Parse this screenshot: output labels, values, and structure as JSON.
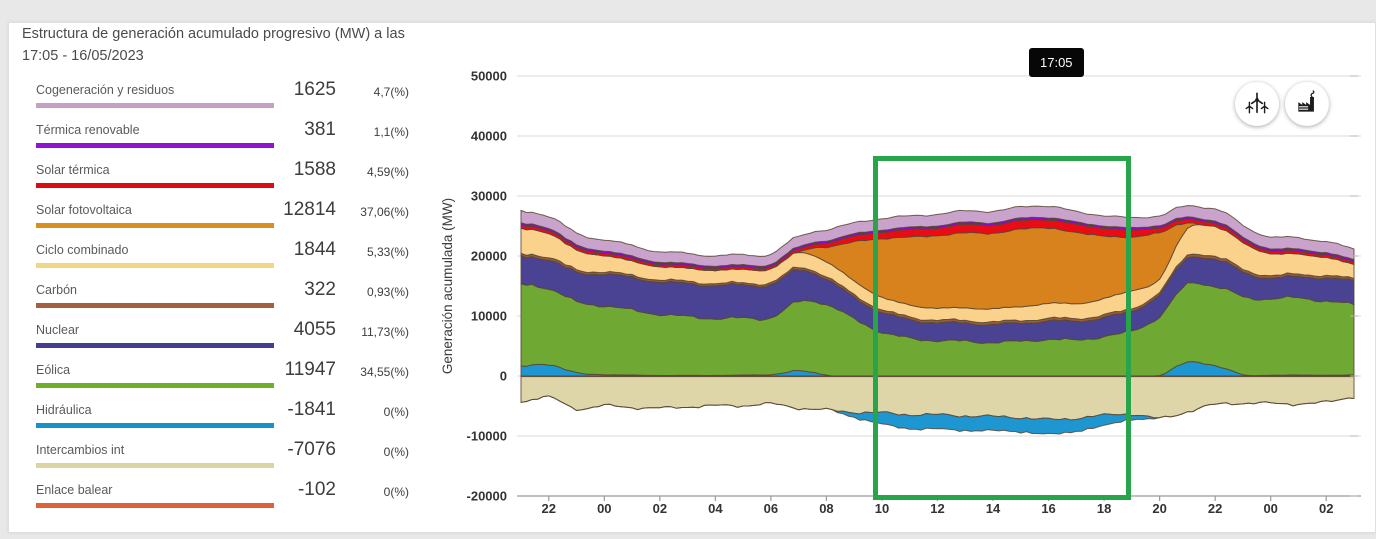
{
  "header": {
    "title_line1": "Estructura de generación acumulado progresivo (MW) a las",
    "title_line2": "17:05 - 16/05/2023"
  },
  "tooltip": {
    "time": "17:05"
  },
  "toolbar": {
    "buttons": [
      {
        "icon": "wind-turbines",
        "tooltip_label": ""
      },
      {
        "icon": "factory",
        "tooltip_label": ""
      }
    ]
  },
  "legend": {
    "items": [
      {
        "key": "cogeneracion",
        "label": "Cogeneración y residuos",
        "value": 1625,
        "percent": "4,7(%)",
        "color": "#c6a0c2"
      },
      {
        "key": "termica_renovable",
        "label": "Térmica renovable",
        "value": 381,
        "percent": "1,1(%)",
        "color": "#8e14cf"
      },
      {
        "key": "solar_termica",
        "label": "Solar térmica",
        "value": 1588,
        "percent": "4,59(%)",
        "color": "#dc0a12"
      },
      {
        "key": "solar_fv",
        "label": "Solar fotovoltaica",
        "value": 12814,
        "percent": "37,06(%)",
        "color": "#d78f1f"
      },
      {
        "key": "ciclo",
        "label": "Ciclo combinado",
        "value": 1844,
        "percent": "5,33(%)",
        "color": "#f3d683"
      },
      {
        "key": "carbon",
        "label": "Carbón",
        "value": 322,
        "percent": "0,93(%)",
        "color": "#a2603e"
      },
      {
        "key": "nuclear",
        "label": "Nuclear",
        "value": 4055,
        "percent": "11,73(%)",
        "color": "#433e8d"
      },
      {
        "key": "eolica",
        "label": "Eólica",
        "value": 11947,
        "percent": "34,55(%)",
        "color": "#6fae2b"
      },
      {
        "key": "hidraulica",
        "label": "Hidráulica",
        "value": -1841,
        "percent": "0(%)",
        "color": "#1792c8"
      },
      {
        "key": "intercambios",
        "label": "Intercambios int",
        "value": -7076,
        "percent": "0(%)",
        "color": "#dbd4a3"
      },
      {
        "key": "enlace_balear",
        "label": "Enlace balear",
        "value": -102,
        "percent": "0(%)",
        "color": "#de6239"
      }
    ]
  },
  "chart_data": {
    "type": "area",
    "stacked": true,
    "title": "",
    "xlabel": "",
    "ylabel": "Generación acumulada (MW)",
    "ylim": [
      -20000,
      50000
    ],
    "grid": true,
    "y_ticks": [
      50000,
      40000,
      30000,
      20000,
      10000,
      0,
      -10000,
      -20000
    ],
    "x_tick_labels": [
      "22",
      "00",
      "02",
      "04",
      "06",
      "08",
      "10",
      "12",
      "14",
      "16",
      "18",
      "20",
      "22",
      "00",
      "02"
    ],
    "x_tick_hours": [
      1,
      3,
      5,
      7,
      9,
      11,
      13,
      15,
      17,
      19,
      21,
      23,
      25,
      27,
      29
    ],
    "hours_span_offsets": [
      0,
      30
    ],
    "highlight_range_hours": [
      "10",
      "19"
    ],
    "highlight_color": "#28a54a",
    "series": [
      {
        "key": "cogeneracion",
        "label": "Cogeneración y residuos",
        "area_color": "#c9a3cc",
        "values": [
          2000,
          2000,
          1950,
          1850,
          1800,
          1750,
          1700,
          1700,
          1700,
          1700,
          1750,
          1800,
          1850,
          1900,
          1900,
          1900,
          1900,
          1900,
          1900,
          1900,
          1750,
          1700,
          1700,
          1600,
          1900,
          2000,
          2000,
          1950,
          1900,
          1850,
          1800
        ]
      },
      {
        "key": "termica_renovable",
        "label": "Térmica renovable",
        "area_color": "#8110c8",
        "values": [
          380,
          380,
          380,
          380,
          380,
          380,
          380,
          380,
          380,
          380,
          380,
          380,
          380,
          380,
          380,
          380,
          380,
          380,
          380,
          380,
          380,
          380,
          380,
          380,
          380,
          380,
          380,
          380,
          380,
          380,
          380
        ]
      },
      {
        "key": "solar_termica",
        "label": "Solar térmica",
        "area_color": "#ea0b15",
        "values": [
          500,
          500,
          450,
          420,
          400,
          380,
          360,
          350,
          350,
          380,
          420,
          700,
          900,
          1100,
          1200,
          1300,
          1350,
          1400,
          1400,
          1380,
          1350,
          1300,
          1200,
          800,
          600,
          550,
          500,
          460,
          430,
          410,
          390
        ]
      },
      {
        "key": "solar_fv",
        "label": "Solar fotovoltaica",
        "area_color": "#d8821e",
        "values": [
          0,
          0,
          0,
          0,
          0,
          0,
          0,
          0,
          0,
          0,
          100,
          2500,
          6500,
          9800,
          11300,
          12100,
          12500,
          12600,
          12900,
          12600,
          11800,
          10500,
          8800,
          7800,
          900,
          0,
          0,
          0,
          0,
          0,
          0
        ]
      },
      {
        "key": "ciclo",
        "label": "Ciclo combinado",
        "area_color": "#fbd28c",
        "values": [
          4200,
          4000,
          3300,
          2700,
          2400,
          2200,
          2200,
          2200,
          2250,
          2300,
          2500,
          2500,
          2300,
          2100,
          2000,
          2000,
          2100,
          2200,
          2300,
          2500,
          2500,
          2700,
          3000,
          2200,
          4500,
          5000,
          4400,
          3700,
          3300,
          3100,
          2300
        ]
      },
      {
        "key": "carbon",
        "label": "Carbón",
        "area_color": "#9a5c36",
        "values": [
          400,
          420,
          400,
          380,
          360,
          350,
          350,
          340,
          340,
          350,
          380,
          400,
          420,
          430,
          430,
          430,
          430,
          430,
          430,
          430,
          430,
          430,
          420,
          400,
          450,
          460,
          440,
          420,
          400,
          390,
          380
        ]
      },
      {
        "key": "nuclear",
        "label": "Nuclear",
        "area_color": "#4a4293",
        "values": [
          4700,
          4800,
          4900,
          5300,
          5400,
          5400,
          5500,
          5500,
          5500,
          5500,
          5300,
          4200,
          3600,
          3300,
          3100,
          3000,
          3000,
          3000,
          3000,
          3100,
          3100,
          3200,
          3300,
          3700,
          4300,
          4500,
          4200,
          3400,
          3600,
          3800,
          4000
        ]
      },
      {
        "key": "eolica",
        "label": "Eólica",
        "area_color": "#70a834",
        "values": [
          13600,
          12700,
          11800,
          11500,
          10800,
          10200,
          9800,
          9500,
          9500,
          9500,
          11500,
          11800,
          9500,
          7300,
          6300,
          5900,
          5800,
          5600,
          5800,
          6100,
          6000,
          6600,
          7500,
          9800,
          13000,
          13200,
          13000,
          12700,
          12900,
          12300,
          11800
        ]
      },
      {
        "key": "hidraulica",
        "label": "Hidráulica",
        "area_color": "#1d96d2",
        "values": [
          1500,
          2000,
          500,
          250,
          150,
          100,
          100,
          100,
          150,
          250,
          800,
          200,
          -900,
          -1800,
          -2400,
          -2300,
          -2500,
          -2300,
          -2400,
          -2400,
          -2200,
          -1700,
          -900,
          100,
          2200,
          1800,
          200,
          150,
          150,
          150,
          150
        ]
      },
      {
        "key": "intercambios",
        "label": "Intercambios int",
        "area_color": "#ded5a8",
        "values": [
          -4100,
          -3500,
          -5300,
          -4900,
          -5100,
          -5300,
          -5000,
          -4900,
          -4800,
          -4600,
          -5200,
          -5600,
          -5900,
          -6100,
          -6300,
          -6400,
          -6500,
          -6700,
          -6800,
          -7200,
          -6900,
          -6500,
          -6200,
          -7000,
          -5800,
          -4700,
          -4400,
          -4500,
          -4500,
          -4300,
          -3300
        ]
      },
      {
        "key": "enlace_balear",
        "label": "Enlace balear",
        "area_color": "#d95f35",
        "values": [
          -100,
          -100,
          -100,
          -100,
          -100,
          -100,
          -100,
          -100,
          -100,
          -100,
          -100,
          -100,
          -100,
          -100,
          -100,
          -100,
          -100,
          -100,
          -100,
          -100,
          -100,
          -100,
          -100,
          -100,
          -100,
          -100,
          -100,
          -100,
          -100,
          -100,
          -100
        ]
      }
    ],
    "colors": {
      "grid": "#dadada",
      "axis_line": "#9a9a9a",
      "tick_text": "#333333",
      "area_outline": "rgba(88,70,52,0.85)"
    }
  }
}
